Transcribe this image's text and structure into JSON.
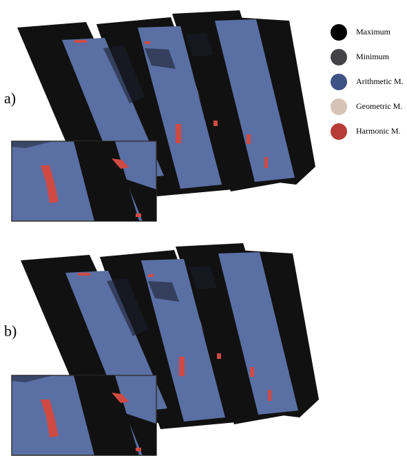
{
  "panels": [
    {
      "label": "a)"
    },
    {
      "label": "b)"
    }
  ],
  "legend": [
    {
      "label": "Maximum",
      "color": "#000000"
    },
    {
      "label": "Minimum",
      "color": "#444446"
    },
    {
      "label": "Arithmetic M.",
      "color": "#3f5286"
    },
    {
      "label": "Geometric M.",
      "color": "#d7c3b5"
    },
    {
      "label": "Harmonic M.",
      "color": "#b53c38"
    }
  ]
}
